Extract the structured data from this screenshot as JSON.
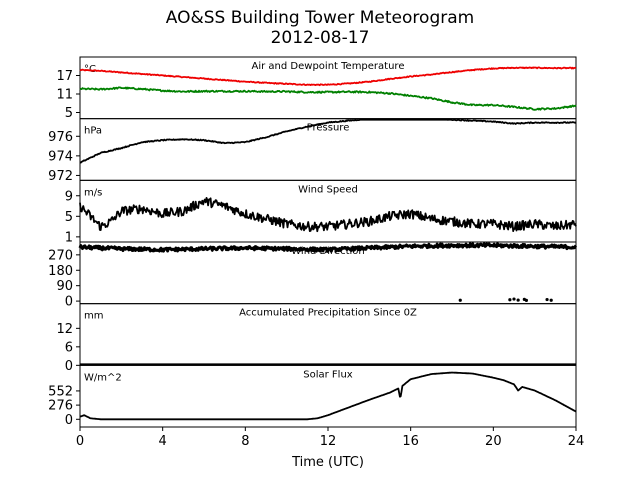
{
  "figure": {
    "title_line1": "AO&SS Building Tower Meteorogram",
    "title_line2": "2012-08-17",
    "xlabel": "Time (UTC)",
    "x_ticks": [
      0,
      4,
      8,
      12,
      16,
      20,
      24
    ],
    "x_range": [
      0,
      24
    ]
  },
  "chart_data": [
    {
      "type": "line",
      "title": "Air and Dewpoint Temperature",
      "unit_label": "°C",
      "ylim": [
        3,
        23
      ],
      "y_ticks": [
        5,
        11,
        17
      ],
      "series": [
        {
          "color": "#ee0000",
          "noise": 0.15,
          "points": [
            [
              0,
              18.8
            ],
            [
              1,
              18.5
            ],
            [
              2,
              18.0
            ],
            [
              3,
              17.5
            ],
            [
              4,
              17.0
            ],
            [
              5,
              16.5
            ],
            [
              6,
              16.0
            ],
            [
              7,
              15.5
            ],
            [
              8,
              15.0
            ],
            [
              9,
              14.6
            ],
            [
              10,
              14.3
            ],
            [
              11,
              14.0
            ],
            [
              12,
              14.0
            ],
            [
              13,
              14.4
            ],
            [
              14,
              15.0
            ],
            [
              15,
              15.9
            ],
            [
              16,
              16.7
            ],
            [
              17,
              17.3
            ],
            [
              18,
              18.1
            ],
            [
              19,
              18.8
            ],
            [
              20,
              19.3
            ],
            [
              21,
              19.5
            ],
            [
              22,
              19.5
            ],
            [
              23,
              19.4
            ],
            [
              24,
              19.4
            ]
          ]
        },
        {
          "color": "#008000",
          "noise": 0.25,
          "points": [
            [
              0,
              12.7
            ],
            [
              1,
              12.5
            ],
            [
              2,
              13.0
            ],
            [
              3,
              12.6
            ],
            [
              4,
              12.1
            ],
            [
              5,
              11.8
            ],
            [
              6,
              11.9
            ],
            [
              7,
              11.9
            ],
            [
              8,
              11.9
            ],
            [
              9,
              11.8
            ],
            [
              10,
              11.8
            ],
            [
              11,
              11.6
            ],
            [
              12,
              11.6
            ],
            [
              13,
              11.7
            ],
            [
              14,
              11.6
            ],
            [
              15,
              11.2
            ],
            [
              16,
              10.4
            ],
            [
              17,
              9.6
            ],
            [
              18,
              8.3
            ],
            [
              19,
              7.4
            ],
            [
              20,
              7.4
            ],
            [
              21,
              6.8
            ],
            [
              22,
              6.1
            ],
            [
              23,
              6.3
            ],
            [
              24,
              7.2
            ]
          ]
        }
      ]
    },
    {
      "type": "line",
      "title": "Pressure",
      "unit_label": "hPa",
      "ylim": [
        971.5,
        977.8
      ],
      "y_ticks": [
        972,
        974,
        976
      ],
      "series": [
        {
          "color": "#000000",
          "noise": 0.05,
          "points": [
            [
              0,
              973.3
            ],
            [
              1,
              974.3
            ],
            [
              2,
              974.8
            ],
            [
              3,
              975.4
            ],
            [
              4,
              975.6
            ],
            [
              5,
              975.7
            ],
            [
              6,
              975.6
            ],
            [
              7,
              975.3
            ],
            [
              8,
              975.4
            ],
            [
              9,
              975.9
            ],
            [
              10,
              976.5
            ],
            [
              11,
              977.0
            ],
            [
              12,
              977.4
            ],
            [
              13,
              977.6
            ],
            [
              14,
              977.8
            ],
            [
              15,
              977.9
            ],
            [
              16,
              977.9
            ],
            [
              17,
              977.8
            ],
            [
              18,
              977.7
            ],
            [
              19,
              977.6
            ],
            [
              20,
              977.5
            ],
            [
              21,
              977.3
            ],
            [
              22,
              977.4
            ],
            [
              23,
              977.4
            ],
            [
              24,
              977.4
            ]
          ]
        }
      ]
    },
    {
      "type": "line",
      "title": "Wind Speed",
      "unit_label": "m/s",
      "ylim": [
        0,
        12
      ],
      "y_ticks": [
        1,
        5,
        9
      ],
      "series": [
        {
          "color": "#000000",
          "noise": 0.9,
          "points": [
            [
              0,
              7
            ],
            [
              0.5,
              5
            ],
            [
              1,
              3
            ],
            [
              1.5,
              4
            ],
            [
              2,
              6
            ],
            [
              3,
              6.5
            ],
            [
              4,
              5.5
            ],
            [
              5,
              6
            ],
            [
              6,
              8
            ],
            [
              7,
              7
            ],
            [
              8,
              5.5
            ],
            [
              9,
              4.5
            ],
            [
              10,
              3.5
            ],
            [
              11,
              3
            ],
            [
              12,
              3
            ],
            [
              13,
              3.5
            ],
            [
              14,
              4
            ],
            [
              15,
              5
            ],
            [
              16,
              5.5
            ],
            [
              17,
              4.5
            ],
            [
              18,
              4
            ],
            [
              19,
              3.5
            ],
            [
              20,
              3.5
            ],
            [
              21,
              3
            ],
            [
              22,
              3.5
            ],
            [
              23,
              3
            ],
            [
              24,
              3.5
            ]
          ]
        }
      ]
    },
    {
      "type": "scatter",
      "title": "Wind Direction",
      "unit_label": "",
      "ylim": [
        -15,
        345
      ],
      "y_ticks": [
        0,
        90,
        180,
        270
      ],
      "series": [
        {
          "color": "#000000",
          "noise": 10,
          "points": [
            [
              0,
              315
            ],
            [
              2,
              305
            ],
            [
              4,
              300
            ],
            [
              6,
              305
            ],
            [
              8,
              310
            ],
            [
              10,
              305
            ],
            [
              12,
              300
            ],
            [
              14,
              310
            ],
            [
              16,
              320
            ],
            [
              18,
              325
            ],
            [
              20,
              325
            ],
            [
              22,
              320
            ],
            [
              24,
              315
            ]
          ]
        },
        {
          "color": "#000000",
          "noise": 0,
          "outliers": [
            [
              18.4,
              5
            ],
            [
              20.8,
              8
            ],
            [
              21.0,
              12
            ],
            [
              21.2,
              6
            ],
            [
              21.5,
              10
            ],
            [
              21.6,
              4
            ],
            [
              22.6,
              9
            ],
            [
              22.8,
              5
            ]
          ]
        }
      ]
    },
    {
      "type": "line",
      "title": "Accumulated Precipitation Since 0Z",
      "unit_label": "mm",
      "ylim": [
        0,
        20
      ],
      "y_ticks": [
        0,
        6,
        12
      ],
      "series": [
        {
          "color": "#000000",
          "noise": 0,
          "points": [
            [
              0,
              0
            ],
            [
              24,
              0
            ]
          ]
        }
      ]
    },
    {
      "type": "line",
      "title": "Solar Flux",
      "unit_label": "W/m^2",
      "ylim": [
        -150,
        1050
      ],
      "y_ticks": [
        0,
        276,
        552
      ],
      "series": [
        {
          "color": "#000000",
          "noise": 0,
          "points": [
            [
              0,
              50
            ],
            [
              0.2,
              80
            ],
            [
              0.5,
              20
            ],
            [
              1,
              0
            ],
            [
              4,
              0
            ],
            [
              8,
              0
            ],
            [
              11,
              0
            ],
            [
              11.5,
              20
            ],
            [
              12,
              80
            ],
            [
              13,
              230
            ],
            [
              14,
              380
            ],
            [
              15,
              520
            ],
            [
              15.4,
              600
            ],
            [
              15.5,
              400
            ],
            [
              15.6,
              650
            ],
            [
              16,
              780
            ],
            [
              17,
              880
            ],
            [
              18,
              910
            ],
            [
              19,
              890
            ],
            [
              20,
              810
            ],
            [
              20.5,
              760
            ],
            [
              21,
              680
            ],
            [
              21.2,
              560
            ],
            [
              21.4,
              630
            ],
            [
              22,
              560
            ],
            [
              23,
              370
            ],
            [
              24,
              150
            ]
          ]
        }
      ]
    }
  ]
}
